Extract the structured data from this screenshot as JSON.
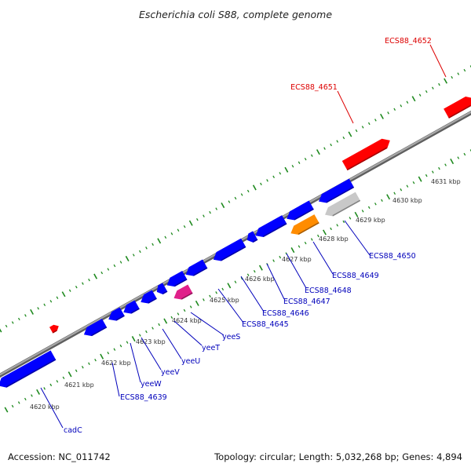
{
  "title": "Escherichia coli S88, complete genome",
  "footer": {
    "accession": "Accession: NC_011742",
    "summary": "Topology: circular; Length: 5,032,268 bp; Genes: 4,894"
  },
  "colors": {
    "backbone": "#8a8a8a",
    "tick": "#1f8a1f",
    "forward_gene": "#ff0000",
    "reverse_gene": "#0000ff",
    "grey_gene": "#c8c8c8",
    "orange_gene": "#ff8c00",
    "pink_gene": "#e0208a",
    "forward_label": "#dd0000",
    "reverse_label": "#0000bb"
  },
  "scale_unit": "kbp",
  "ticks": [
    "4620 kbp",
    "4621 kbp",
    "4622 kbp",
    "4623 kbp",
    "4624 kbp",
    "4625 kbp",
    "4626 kbp",
    "4627 kbp",
    "4628 kbp",
    "4629 kbp",
    "4630 kbp",
    "4631 kbp"
  ],
  "forward_labels": [
    "ECS88_4651",
    "ECS88_4652"
  ],
  "reverse_labels": [
    "cadC",
    "ECS88_4639",
    "yeeW",
    "yeeV",
    "yeeU",
    "yeeT",
    "yeeS",
    "ECS88_4645",
    "ECS88_4646",
    "ECS88_4647",
    "ECS88_4648",
    "ECS88_4649",
    "ECS88_4650"
  ]
}
